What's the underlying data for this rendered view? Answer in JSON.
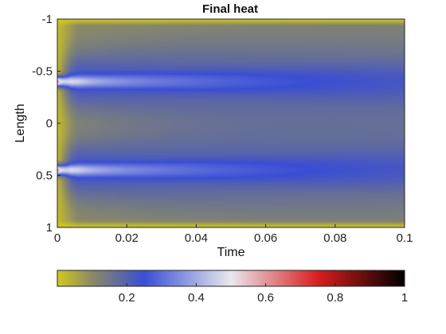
{
  "chart_data": {
    "type": "heatmap",
    "title": "Final heat",
    "xlabel": "Time",
    "ylabel": "Length",
    "xlim": [
      0,
      0.1
    ],
    "ylim": [
      -1,
      1
    ],
    "y_reversed": true,
    "x_ticks": [
      "0",
      "0.02",
      "0.04",
      "0.06",
      "0.08",
      "0.1"
    ],
    "x_tick_values": [
      0,
      0.02,
      0.04,
      0.06,
      0.08,
      0.1
    ],
    "y_ticks": [
      "-1",
      "-0.5",
      "0",
      "0.5",
      "1"
    ],
    "y_tick_values": [
      -1,
      -0.5,
      0,
      0.5,
      1
    ],
    "heat_sources": [
      {
        "x": 0,
        "y": -0.4,
        "peak": 0.7
      },
      {
        "x": 0,
        "y": 0.45,
        "peak": 0.7
      }
    ],
    "background_level": 0.1,
    "colorbar": {
      "orientation": "horizontal",
      "range": [
        0,
        1
      ],
      "ticks": [
        "0.2",
        "0.4",
        "0.6",
        "0.8",
        "1"
      ],
      "tick_values": [
        0.2,
        0.4,
        0.6,
        0.8,
        1
      ],
      "colors": [
        {
          "v": 0.0,
          "c": "#d2c81e"
        },
        {
          "v": 0.1,
          "c": "#8a8a66"
        },
        {
          "v": 0.25,
          "c": "#3a4ed4"
        },
        {
          "v": 0.5,
          "c": "#e8e8ee"
        },
        {
          "v": 0.75,
          "c": "#d81e1e"
        },
        {
          "v": 1.0,
          "c": "#000000"
        }
      ]
    },
    "grid": false
  }
}
